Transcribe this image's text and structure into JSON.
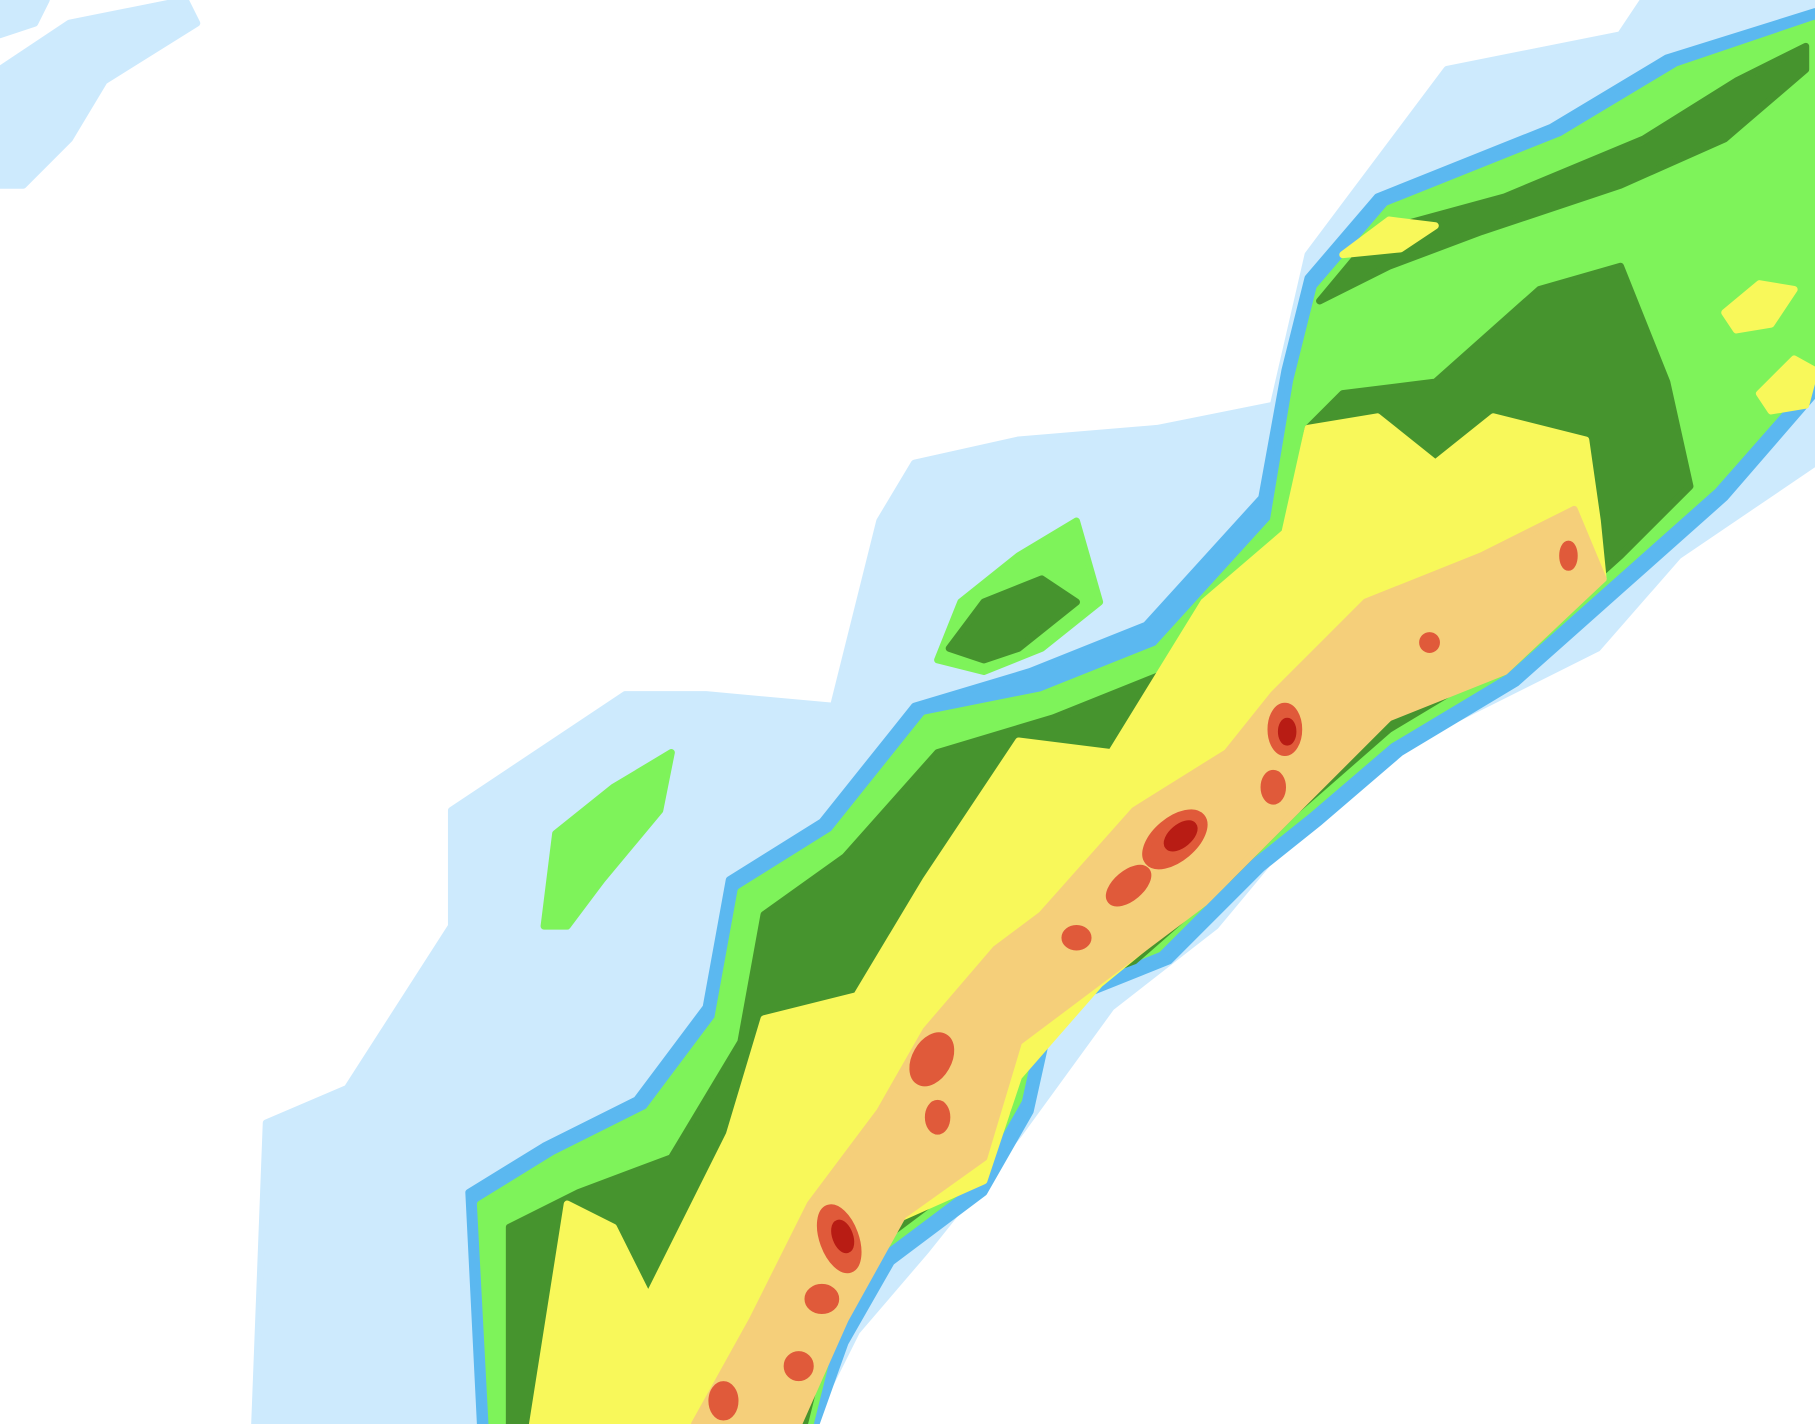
{
  "map": {
    "type": "precipitation-radar",
    "intensity_palette": {
      "background": "#ffffff",
      "very_light": "#cdeafd",
      "light": "#5bb8f0",
      "light_moderate": "#7ef35a",
      "moderate": "#46942e",
      "moderate_heavy": "#f8f85a",
      "heavy": "#f5cf7a",
      "very_heavy": "#e05a3a",
      "extreme": "#b81c14"
    }
  }
}
